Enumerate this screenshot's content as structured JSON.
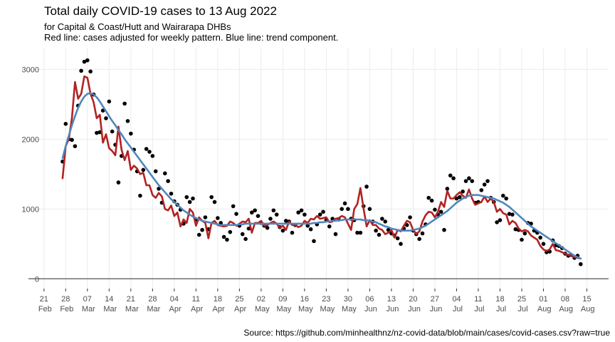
{
  "chart_data": {
    "type": "timeseries",
    "title": "Total daily COVID-19 cases to 13 Aug 2022",
    "subtitle": [
      "for Capital & Coast/Hutt and Wairarapa DHBs",
      "Red line: cases adjusted for weekly pattern. Blue line: trend component."
    ],
    "caption": "Source: https://github.com/minhealthnz/nz-covid-data/blob/main/cases/covid-cases.csv?raw=true",
    "grid": true,
    "xlim": [
      "2022-02-16",
      "2022-08-22"
    ],
    "ylim": [
      -140,
      3300
    ],
    "yticks": [
      0,
      1000,
      2000,
      3000
    ],
    "xticks": [
      {
        "value": "2022-02-21",
        "label": "21 Feb"
      },
      {
        "value": "2022-02-28",
        "label": "28 Feb"
      },
      {
        "value": "2022-03-07",
        "label": "07 Mar"
      },
      {
        "value": "2022-03-14",
        "label": "14 Mar"
      },
      {
        "value": "2022-03-21",
        "label": "21 Mar"
      },
      {
        "value": "2022-03-28",
        "label": "28 Mar"
      },
      {
        "value": "2022-04-04",
        "label": "04 Apr"
      },
      {
        "value": "2022-04-11",
        "label": "11 Apr"
      },
      {
        "value": "2022-04-18",
        "label": "18 Apr"
      },
      {
        "value": "2022-04-25",
        "label": "25 Apr"
      },
      {
        "value": "2022-05-02",
        "label": "02 May"
      },
      {
        "value": "2022-05-09",
        "label": "09 May"
      },
      {
        "value": "2022-05-16",
        "label": "16 May"
      },
      {
        "value": "2022-05-23",
        "label": "23 May"
      },
      {
        "value": "2022-05-30",
        "label": "30 May"
      },
      {
        "value": "2022-06-06",
        "label": "06 Jun"
      },
      {
        "value": "2022-06-13",
        "label": "13 Jun"
      },
      {
        "value": "2022-06-20",
        "label": "20 Jun"
      },
      {
        "value": "2022-06-27",
        "label": "27 Jun"
      },
      {
        "value": "2022-07-04",
        "label": "04 Jul"
      },
      {
        "value": "2022-07-11",
        "label": "11 Jul"
      },
      {
        "value": "2022-07-18",
        "label": "18 Jul"
      },
      {
        "value": "2022-07-25",
        "label": "25 Jul"
      },
      {
        "value": "2022-08-01",
        "label": "01 Aug"
      },
      {
        "value": "2022-08-08",
        "label": "08 Aug"
      },
      {
        "value": "2022-08-15",
        "label": "15 Aug"
      }
    ],
    "x": [
      "2022-02-27",
      "2022-02-28",
      "2022-03-01",
      "2022-03-02",
      "2022-03-03",
      "2022-03-04",
      "2022-03-05",
      "2022-03-06",
      "2022-03-07",
      "2022-03-08",
      "2022-03-09",
      "2022-03-10",
      "2022-03-11",
      "2022-03-12",
      "2022-03-13",
      "2022-03-14",
      "2022-03-15",
      "2022-03-16",
      "2022-03-17",
      "2022-03-18",
      "2022-03-19",
      "2022-03-20",
      "2022-03-21",
      "2022-03-22",
      "2022-03-23",
      "2022-03-24",
      "2022-03-25",
      "2022-03-26",
      "2022-03-27",
      "2022-03-28",
      "2022-03-29",
      "2022-03-30",
      "2022-03-31",
      "2022-04-01",
      "2022-04-02",
      "2022-04-03",
      "2022-04-04",
      "2022-04-05",
      "2022-04-06",
      "2022-04-07",
      "2022-04-08",
      "2022-04-09",
      "2022-04-10",
      "2022-04-11",
      "2022-04-12",
      "2022-04-13",
      "2022-04-14",
      "2022-04-15",
      "2022-04-16",
      "2022-04-17",
      "2022-04-18",
      "2022-04-19",
      "2022-04-20",
      "2022-04-21",
      "2022-04-22",
      "2022-04-23",
      "2022-04-24",
      "2022-04-25",
      "2022-04-26",
      "2022-04-27",
      "2022-04-28",
      "2022-04-29",
      "2022-04-30",
      "2022-05-01",
      "2022-05-02",
      "2022-05-03",
      "2022-05-04",
      "2022-05-05",
      "2022-05-06",
      "2022-05-07",
      "2022-05-08",
      "2022-05-09",
      "2022-05-10",
      "2022-05-11",
      "2022-05-12",
      "2022-05-13",
      "2022-05-14",
      "2022-05-15",
      "2022-05-16",
      "2022-05-17",
      "2022-05-18",
      "2022-05-19",
      "2022-05-20",
      "2022-05-21",
      "2022-05-22",
      "2022-05-23",
      "2022-05-24",
      "2022-05-25",
      "2022-05-26",
      "2022-05-27",
      "2022-05-28",
      "2022-05-29",
      "2022-05-30",
      "2022-05-31",
      "2022-06-01",
      "2022-06-02",
      "2022-06-03",
      "2022-06-04",
      "2022-06-05",
      "2022-06-06",
      "2022-06-07",
      "2022-06-08",
      "2022-06-09",
      "2022-06-10",
      "2022-06-11",
      "2022-06-12",
      "2022-06-13",
      "2022-06-14",
      "2022-06-15",
      "2022-06-16",
      "2022-06-17",
      "2022-06-18",
      "2022-06-19",
      "2022-06-20",
      "2022-06-21",
      "2022-06-22",
      "2022-06-23",
      "2022-06-24",
      "2022-06-25",
      "2022-06-26",
      "2022-06-27",
      "2022-06-28",
      "2022-06-29",
      "2022-06-30",
      "2022-07-01",
      "2022-07-02",
      "2022-07-03",
      "2022-07-04",
      "2022-07-05",
      "2022-07-06",
      "2022-07-07",
      "2022-07-08",
      "2022-07-09",
      "2022-07-10",
      "2022-07-11",
      "2022-07-12",
      "2022-07-13",
      "2022-07-14",
      "2022-07-15",
      "2022-07-16",
      "2022-07-17",
      "2022-07-18",
      "2022-07-19",
      "2022-07-20",
      "2022-07-21",
      "2022-07-22",
      "2022-07-23",
      "2022-07-24",
      "2022-07-25",
      "2022-07-26",
      "2022-07-27",
      "2022-07-28",
      "2022-07-29",
      "2022-07-30",
      "2022-07-31",
      "2022-08-01",
      "2022-08-02",
      "2022-08-03",
      "2022-08-04",
      "2022-08-05",
      "2022-08-06",
      "2022-08-07",
      "2022-08-08",
      "2022-08-09",
      "2022-08-10",
      "2022-08-11",
      "2022-08-12",
      "2022-08-13"
    ],
    "series": [
      {
        "kind": "points",
        "color": "#000000",
        "values": [
          1680,
          2220,
          2000,
          1990,
          1900,
          2480,
          2980,
          3110,
          3130,
          2970,
          2640,
          2090,
          2100,
          2410,
          2300,
          2540,
          2110,
          1920,
          1380,
          1760,
          2510,
          2260,
          2080,
          1850,
          1540,
          1190,
          1560,
          1860,
          1820,
          1760,
          1540,
          1290,
          1090,
          1510,
          1400,
          1220,
          1110,
          1060,
          990,
          790,
          1170,
          1100,
          1150,
          850,
          630,
          700,
          880,
          710,
          1170,
          1100,
          870,
          800,
          600,
          560,
          670,
          1040,
          930,
          760,
          640,
          570,
          720,
          950,
          980,
          900,
          800,
          760,
          730,
          860,
          980,
          920,
          740,
          690,
          830,
          820,
          660,
          770,
          950,
          980,
          920,
          760,
          710,
          540,
          780,
          920,
          960,
          840,
          750,
          860,
          640,
          850,
          1000,
          1080,
          1000,
          860,
          840,
          660,
          660,
          1040,
          1320,
          1000,
          820,
          690,
          630,
          860,
          820,
          700,
          650,
          620,
          580,
          500,
          720,
          770,
          880,
          690,
          640,
          570,
          650,
          780,
          1160,
          1120,
          990,
          920,
          960,
          700,
          1290,
          1480,
          1440,
          1150,
          1170,
          1250,
          1400,
          1440,
          1400,
          1090,
          1100,
          1270,
          1350,
          1400,
          1160,
          1100,
          810,
          840,
          1190,
          1150,
          930,
          920,
          710,
          700,
          560,
          650,
          800,
          790,
          690,
          660,
          590,
          500,
          380,
          390,
          550,
          480,
          470,
          440,
          360,
          330,
          340,
          300,
          330,
          210
        ]
      },
      {
        "kind": "line",
        "color": "#b22222",
        "values": [
          1440,
          1900,
          2000,
          2300,
          2820,
          2580,
          2650,
          2900,
          2880,
          2650,
          2530,
          2300,
          2350,
          1950,
          2070,
          1870,
          1830,
          1770,
          2180,
          1850,
          1700,
          1830,
          1560,
          1620,
          1580,
          1500,
          1520,
          1340,
          1340,
          1200,
          1160,
          1230,
          1180,
          1000,
          980,
          1050,
          900,
          950,
          750,
          850,
          800,
          1000,
          950,
          760,
          880,
          830,
          800,
          580,
          800,
          830,
          770,
          760,
          750,
          760,
          820,
          800,
          760,
          790,
          820,
          810,
          860,
          660,
          800,
          800,
          830,
          760,
          770,
          800,
          820,
          790,
          730,
          760,
          700,
          820,
          770,
          770,
          740,
          760,
          830,
          800,
          860,
          850,
          900,
          860,
          870,
          880,
          810,
          820,
          860,
          870,
          900,
          880,
          790,
          700,
          1000,
          1070,
          1300,
          1010,
          750,
          840,
          770,
          770,
          720,
          700,
          640,
          660,
          700,
          590,
          700,
          680,
          760,
          830,
          810,
          700,
          640,
          680,
          820,
          910,
          960,
          950,
          880,
          960,
          1100,
          1030,
          1260,
          1150,
          1150,
          1200,
          1240,
          1190,
          1160,
          1280,
          1150,
          1060,
          1080,
          1100,
          1180,
          1100,
          1150,
          1100,
          960,
          1000,
          940,
          920,
          780,
          830,
          800,
          720,
          680,
          700,
          680,
          620,
          590,
          560,
          470,
          420,
          400,
          420,
          500,
          410,
          400,
          380,
          360,
          340,
          330,
          310,
          300,
          290
        ]
      },
      {
        "kind": "line",
        "color": "#4f86bd",
        "values": [
          1730,
          1900,
          2050,
          2200,
          2330,
          2450,
          2540,
          2610,
          2650,
          2660,
          2640,
          2600,
          2540,
          2470,
          2400,
          2330,
          2260,
          2200,
          2130,
          2070,
          2000,
          1940,
          1880,
          1820,
          1760,
          1700,
          1640,
          1580,
          1520,
          1460,
          1400,
          1340,
          1290,
          1240,
          1190,
          1140,
          1100,
          1060,
          1020,
          980,
          950,
          920,
          890,
          870,
          850,
          830,
          820,
          810,
          800,
          790,
          780,
          770,
          770,
          770,
          770,
          770,
          770,
          780,
          780,
          790,
          790,
          790,
          790,
          790,
          790,
          790,
          790,
          790,
          790,
          790,
          790,
          790,
          790,
          790,
          790,
          790,
          790,
          790,
          790,
          790,
          790,
          800,
          800,
          810,
          810,
          820,
          820,
          830,
          830,
          840,
          840,
          850,
          850,
          850,
          850,
          850,
          850,
          840,
          840,
          830,
          820,
          810,
          790,
          770,
          750,
          740,
          720,
          710,
          700,
          690,
          690,
          690,
          690,
          700,
          710,
          720,
          740,
          760,
          790,
          820,
          850,
          880,
          910,
          940,
          970,
          1010,
          1050,
          1090,
          1120,
          1150,
          1170,
          1190,
          1200,
          1200,
          1200,
          1190,
          1180,
          1170,
          1160,
          1150,
          1130,
          1110,
          1090,
          1060,
          1030,
          990,
          950,
          910,
          870,
          830,
          790,
          750,
          720,
          690,
          660,
          630,
          600,
          570,
          540,
          510,
          480,
          450,
          420,
          390,
          360,
          330,
          310,
          290
        ]
      }
    ]
  }
}
